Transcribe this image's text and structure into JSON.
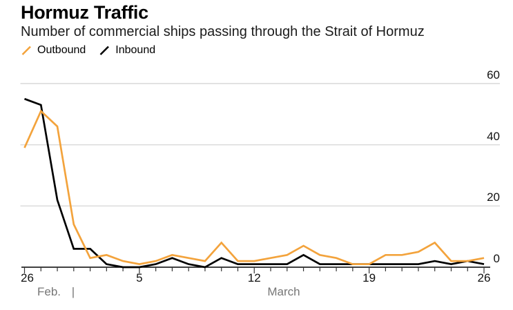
{
  "header": {
    "title": "Hormuz Traffic",
    "subtitle": "Number of commercial ships passing through the Strait of Hormuz"
  },
  "chart_data": {
    "type": "line",
    "title": "Hormuz Traffic",
    "subtitle": "Number of commercial ships passing through the Strait of Hormuz",
    "x": [
      "Feb 26",
      "Feb 27",
      "Feb 28",
      "Mar 1",
      "Mar 2",
      "Mar 3",
      "Mar 4",
      "Mar 5",
      "Mar 6",
      "Mar 7",
      "Mar 8",
      "Mar 9",
      "Mar 10",
      "Mar 11",
      "Mar 12",
      "Mar 13",
      "Mar 14",
      "Mar 15",
      "Mar 16",
      "Mar 17",
      "Mar 18",
      "Mar 19",
      "Mar 20",
      "Mar 21",
      "Mar 22",
      "Mar 23",
      "Mar 24",
      "Mar 25",
      "Mar 26"
    ],
    "series": [
      {
        "name": "Outbound",
        "color": "#F3A33C",
        "values": [
          39,
          51,
          46,
          14,
          3,
          4,
          2,
          1,
          2,
          4,
          3,
          2,
          8,
          2,
          2,
          3,
          4,
          7,
          4,
          3,
          1,
          1,
          4,
          4,
          5,
          8,
          2,
          2,
          3
        ]
      },
      {
        "name": "Inbound",
        "color": "#000000",
        "values": [
          55,
          53,
          22,
          6,
          6,
          1,
          0,
          0,
          1,
          3,
          1,
          0,
          3,
          1,
          1,
          1,
          1,
          4,
          1,
          1,
          1,
          1,
          1,
          1,
          1,
          2,
          1,
          2,
          1
        ]
      }
    ],
    "y_axis": {
      "side": "right",
      "range": [
        0,
        60
      ],
      "ticks": [
        60,
        40,
        20,
        0
      ],
      "grid": true
    },
    "x_axis": {
      "tick_labels": [
        {
          "label": "26",
          "index": 0
        },
        {
          "label": "5",
          "index": 7
        },
        {
          "label": "12",
          "index": 14
        },
        {
          "label": "19",
          "index": 21
        },
        {
          "label": "26",
          "index": 28
        }
      ],
      "month_left": "Feb.",
      "month_divider": "|",
      "month_right": "March"
    },
    "legend_position": "top-left",
    "colors": {
      "outbound": "#F3A33C",
      "inbound": "#000000",
      "gridline": "#D9D9D9",
      "axis": "#000000",
      "month_label": "#767676"
    }
  }
}
